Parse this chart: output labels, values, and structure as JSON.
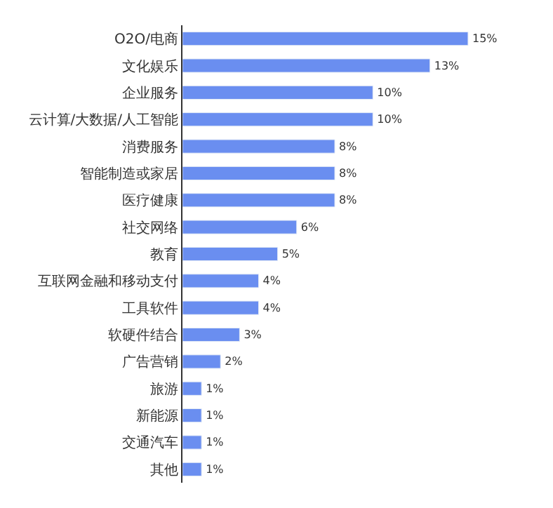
{
  "chart_data": {
    "type": "bar",
    "orientation": "horizontal",
    "categories": [
      "O2O/电商",
      "文化娱乐",
      "企业服务",
      "云计算/大数据/人工智能",
      "消费服务",
      "智能制造或家居",
      "医疗健康",
      "社交网络",
      "教育",
      "互联网金融和移动支付",
      "工具软件",
      "软硬件结合",
      "广告营销",
      "旅游",
      "新能源",
      "交通汽车",
      "其他"
    ],
    "values": [
      15,
      13,
      10,
      10,
      8,
      8,
      8,
      6,
      5,
      4,
      4,
      3,
      2,
      1,
      1,
      1,
      1
    ],
    "value_labels": [
      "15%",
      "13%",
      "10%",
      "10%",
      "8%",
      "8%",
      "8%",
      "6%",
      "5%",
      "4%",
      "4%",
      "3%",
      "2%",
      "1%",
      "1%",
      "1%",
      "1%"
    ],
    "color": "#6a8ef0"
  }
}
